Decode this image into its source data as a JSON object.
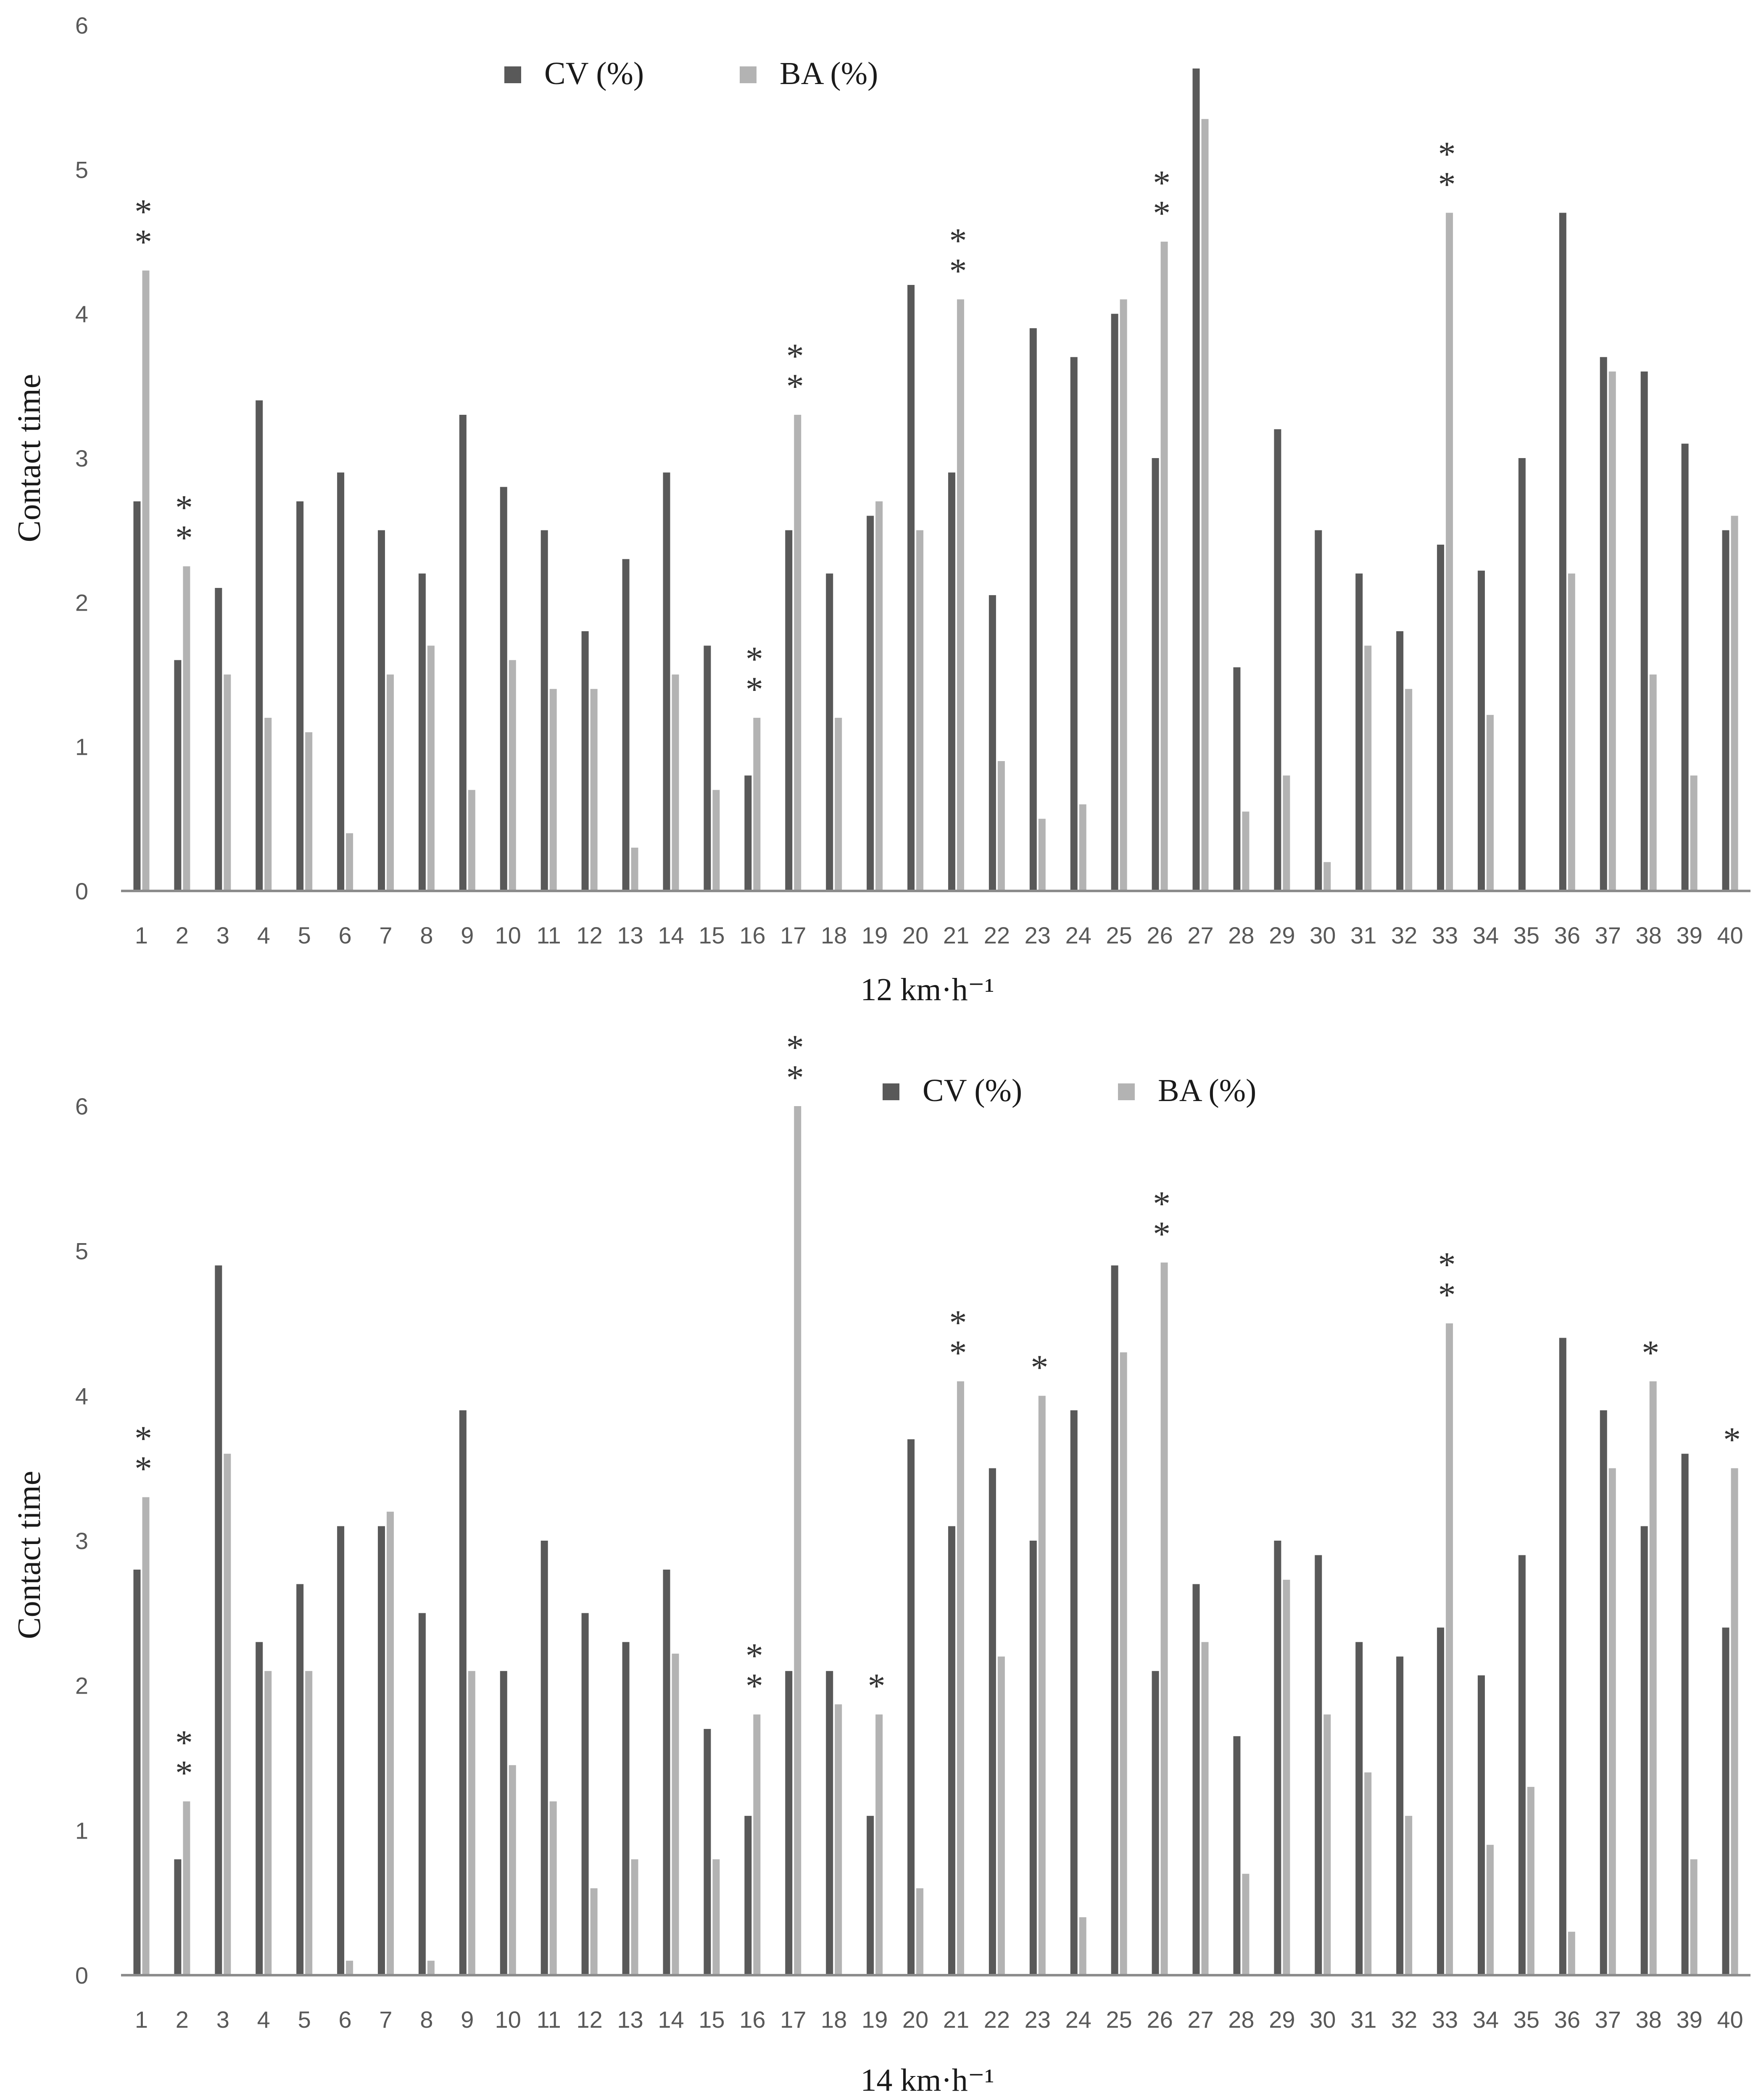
{
  "chart_data": [
    {
      "type": "bar",
      "xlabel": "12 km·h⁻¹",
      "ylabel": "Contact time",
      "ylim": [
        0,
        6
      ],
      "yticks": [
        "0",
        "1",
        "2",
        "3",
        "4",
        "5",
        "6"
      ],
      "legend_position": "top-center",
      "categories": [
        "1",
        "2",
        "3",
        "4",
        "5",
        "6",
        "7",
        "8",
        "9",
        "10",
        "11",
        "12",
        "13",
        "14",
        "15",
        "16",
        "17",
        "18",
        "19",
        "20",
        "21",
        "22",
        "23",
        "24",
        "25",
        "26",
        "27",
        "28",
        "29",
        "30",
        "31",
        "32",
        "33",
        "34",
        "35",
        "36",
        "37",
        "38",
        "39",
        "40"
      ],
      "series": [
        {
          "name": "CV (%)",
          "color": "#595959",
          "values": [
            2.7,
            1.6,
            2.1,
            3.4,
            2.7,
            2.9,
            2.5,
            2.2,
            3.3,
            2.8,
            2.5,
            1.8,
            2.3,
            2.9,
            1.7,
            0.8,
            2.5,
            2.2,
            2.6,
            4.2,
            2.9,
            2.05,
            3.9,
            3.7,
            4.0,
            3.0,
            5.7,
            1.55,
            3.2,
            2.5,
            2.2,
            1.8,
            2.4,
            2.22,
            3.0,
            4.7,
            3.7,
            3.6,
            3.1,
            2.5
          ]
        },
        {
          "name": "BA (%)",
          "color": "#b3b3b3",
          "values": [
            4.3,
            2.25,
            1.5,
            1.2,
            1.1,
            0.4,
            1.5,
            1.7,
            0.7,
            1.6,
            1.4,
            1.4,
            0.3,
            1.5,
            0.7,
            1.2,
            3.3,
            1.2,
            2.7,
            2.5,
            4.1,
            0.9,
            0.5,
            0.6,
            4.1,
            4.5,
            5.35,
            0.55,
            0.8,
            0.2,
            1.7,
            1.4,
            4.7,
            1.22,
            0,
            2.2,
            3.6,
            1.5,
            0.8,
            2.6
          ]
        }
      ],
      "annotations": [
        {
          "category": "1",
          "text": "**"
        },
        {
          "category": "2",
          "text": "**"
        },
        {
          "category": "16",
          "text": "**"
        },
        {
          "category": "17",
          "text": "**"
        },
        {
          "category": "21",
          "text": "**"
        },
        {
          "category": "26",
          "text": "**"
        },
        {
          "category": "33",
          "text": "**"
        }
      ]
    },
    {
      "type": "bar",
      "xlabel": "14 km·h⁻¹",
      "ylabel": "Contact time",
      "ylim": [
        0,
        6
      ],
      "yticks": [
        "0",
        "1",
        "2",
        "3",
        "4",
        "5",
        "6"
      ],
      "legend_position": "top-center",
      "categories": [
        "1",
        "2",
        "3",
        "4",
        "5",
        "6",
        "7",
        "8",
        "9",
        "10",
        "11",
        "12",
        "13",
        "14",
        "15",
        "16",
        "17",
        "18",
        "19",
        "20",
        "21",
        "22",
        "23",
        "24",
        "25",
        "26",
        "27",
        "28",
        "29",
        "30",
        "31",
        "32",
        "33",
        "34",
        "35",
        "36",
        "37",
        "38",
        "39",
        "40"
      ],
      "series": [
        {
          "name": "CV (%)",
          "color": "#595959",
          "values": [
            2.8,
            0.8,
            4.9,
            2.3,
            2.7,
            3.1,
            3.1,
            2.5,
            3.9,
            2.1,
            3.0,
            2.5,
            2.3,
            2.8,
            1.7,
            1.1,
            2.1,
            2.1,
            1.1,
            3.7,
            3.1,
            3.5,
            3.0,
            3.9,
            4.9,
            2.1,
            2.7,
            1.65,
            3.0,
            2.9,
            2.3,
            2.2,
            2.4,
            2.07,
            2.9,
            4.4,
            3.9,
            3.1,
            3.6,
            2.4
          ]
        },
        {
          "name": "BA (%)",
          "color": "#b3b3b3",
          "values": [
            3.3,
            1.2,
            3.6,
            2.1,
            2.1,
            0.1,
            3.2,
            0.1,
            2.1,
            1.45,
            1.2,
            0.6,
            0.8,
            2.22,
            0.8,
            1.8,
            6.0,
            1.87,
            1.8,
            0.6,
            4.1,
            2.2,
            4.0,
            0.4,
            4.3,
            4.92,
            2.3,
            0.7,
            2.73,
            1.8,
            1.4,
            1.1,
            4.5,
            0.9,
            1.3,
            0.3,
            3.5,
            4.1,
            0.8,
            3.5
          ]
        }
      ],
      "annotations": [
        {
          "category": "1",
          "text": "**"
        },
        {
          "category": "2",
          "text": "**"
        },
        {
          "category": "16",
          "text": "**"
        },
        {
          "category": "17",
          "text": "**"
        },
        {
          "category": "19",
          "text": "*"
        },
        {
          "category": "21",
          "text": "**"
        },
        {
          "category": "23",
          "text": "*"
        },
        {
          "category": "26",
          "text": "**"
        },
        {
          "category": "33",
          "text": "**"
        },
        {
          "category": "38",
          "text": "*"
        },
        {
          "category": "40",
          "text": "*"
        }
      ]
    }
  ]
}
